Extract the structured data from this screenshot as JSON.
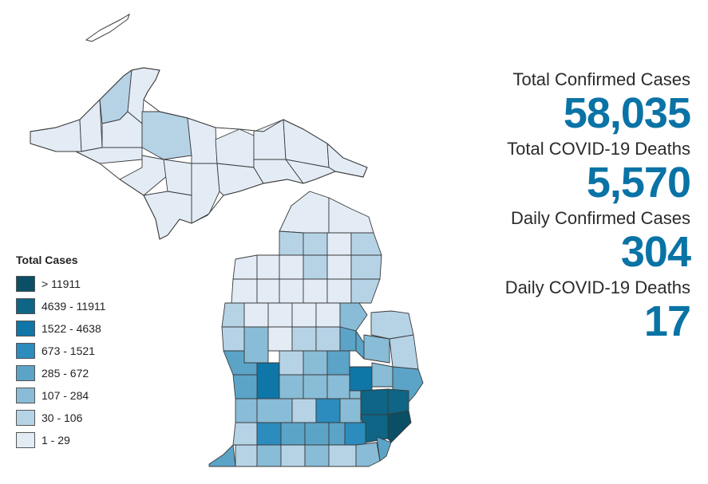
{
  "legend": {
    "title": "Total Cases",
    "items": [
      {
        "label": "> 11911",
        "color": "#0b4f66"
      },
      {
        "label": "4639 - 11911",
        "color": "#0e6585"
      },
      {
        "label": "1522 - 4638",
        "color": "#0f76a8"
      },
      {
        "label": "673 - 1521",
        "color": "#2b8cbd"
      },
      {
        "label": "285 - 672",
        "color": "#5ba4c8"
      },
      {
        "label": "107 - 284",
        "color": "#89bcd6"
      },
      {
        "label": "30 - 106",
        "color": "#b6d3e6"
      },
      {
        "label": "1 - 29",
        "color": "#e3ecf5"
      }
    ]
  },
  "stats": {
    "total_confirmed_label": "Total Confirmed Cases",
    "total_confirmed_value": "58,035",
    "total_deaths_label": "Total COVID-19 Deaths",
    "total_deaths_value": "5,570",
    "daily_confirmed_label": "Daily Confirmed Cases",
    "daily_confirmed_value": "304",
    "daily_deaths_label": "Daily COVID-19 Deaths",
    "daily_deaths_value": "17"
  }
}
